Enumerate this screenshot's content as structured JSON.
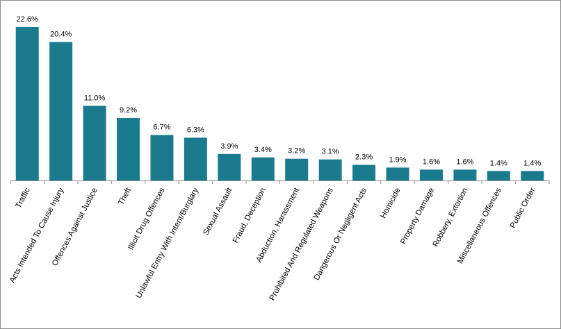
{
  "chart_data": {
    "type": "bar",
    "categories": [
      "Traffic",
      "Acts Intended To Cause Injury",
      "Offences Against Justice",
      "Theft",
      "Illicit Drug Offences",
      "Unlawful Entry With Intent/Burglary",
      "Sexual Assault",
      "Fraud, Deception",
      "Abduction, Harassment",
      "Prohibited And Regulated Weapons",
      "Dangerous Or Negligent Acts",
      "Homicide",
      "Property Damage",
      "Robbery, Extortion",
      "Miscellaneous Offences",
      "Public Order"
    ],
    "values": [
      22.6,
      20.4,
      11.0,
      9.2,
      6.7,
      6.3,
      3.9,
      3.4,
      3.2,
      3.1,
      2.3,
      1.9,
      1.6,
      1.6,
      1.4,
      1.4
    ],
    "value_labels": [
      "22.6%",
      "20.4%",
      "11.0%",
      "9.2%",
      "6.7%",
      "6.3%",
      "3.9%",
      "3.4%",
      "3.2%",
      "3.1%",
      "2.3%",
      "1.9%",
      "1.6%",
      "1.6%",
      "1.4%",
      "1.4%"
    ],
    "ylim": [
      0,
      22.6
    ],
    "grid": false,
    "legend": "none",
    "bar_color": "#1a7b8e",
    "title": "",
    "xlabel": "",
    "ylabel": ""
  }
}
